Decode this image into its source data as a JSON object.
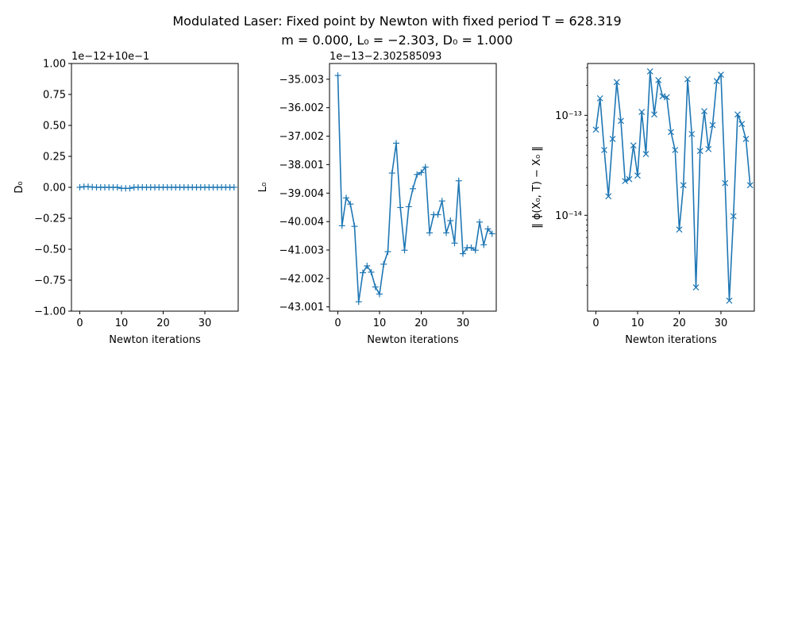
{
  "figure": {
    "title_line1": "Modulated Laser: Fixed point by Newton with fixed period T = 628.319",
    "title_line2": "m = 0.000, L₀ = −2.303, D₀ = 1.000"
  },
  "chart_data": [
    {
      "type": "line",
      "xlabel": "Newton iterations",
      "ylabel": "D₀",
      "offset_text": "1e−12+10e−1",
      "marker": "+",
      "color": "#1f77b4",
      "xlim": [
        -2,
        38
      ],
      "ylim": [
        -1.0,
        1.0
      ],
      "y_scale": "linear",
      "x_ticks": [
        0,
        10,
        20,
        30
      ],
      "x_tick_labels": [
        "0",
        "10",
        "20",
        "30"
      ],
      "y_ticks": [
        1.0,
        0.75,
        0.5,
        0.25,
        0.0,
        -0.25,
        -0.5,
        -0.75,
        -1.0
      ],
      "y_tick_labels": [
        "1.00",
        "0.75",
        "0.50",
        "0.25",
        "0.00",
        "−0.25",
        "−0.50",
        "−0.75",
        "−1.00"
      ],
      "x": [
        0,
        1,
        2,
        3,
        4,
        5,
        6,
        7,
        8,
        9,
        10,
        11,
        12,
        13,
        14,
        15,
        16,
        17,
        18,
        19,
        20,
        21,
        22,
        23,
        24,
        25,
        26,
        27,
        28,
        29,
        30,
        31,
        32,
        33,
        34,
        35,
        36,
        37
      ],
      "y": [
        0.0,
        0.005,
        0.005,
        0.002,
        0.0,
        0.0,
        0.0,
        0.0,
        0.0,
        0.0,
        -0.008,
        -0.008,
        -0.008,
        0.0,
        0.0,
        0.0,
        0.0,
        0.0,
        0.0,
        0.0,
        0.0,
        0.0,
        0.0,
        0.0,
        0.0,
        0.0,
        0.0,
        0.0,
        0.0,
        0.0,
        0.0,
        0.0,
        0.0,
        0.0,
        0.0,
        0.0,
        0.0,
        0.0
      ]
    },
    {
      "type": "line",
      "xlabel": "Newton iterations",
      "ylabel": "L₀",
      "offset_text": "1e−13−2.302585093",
      "marker": "+",
      "color": "#1f77b4",
      "xlim": [
        -2,
        38
      ],
      "ylim": [
        -43.15,
        -34.45
      ],
      "y_scale": "linear",
      "x_ticks": [
        0,
        10,
        20,
        30
      ],
      "x_tick_labels": [
        "0",
        "10",
        "20",
        "30"
      ],
      "y_ticks": [
        -35.003,
        -36.002,
        -37.002,
        -38.001,
        -39.004,
        -40.004,
        -41.003,
        -42.002,
        -43.001
      ],
      "y_tick_labels": [
        "−35.003",
        "−36.002",
        "−37.002",
        "−38.001",
        "−39.004",
        "−40.004",
        "−41.003",
        "−42.002",
        "−43.001"
      ],
      "x": [
        0,
        1,
        2,
        3,
        4,
        5,
        6,
        7,
        8,
        9,
        10,
        11,
        12,
        13,
        14,
        15,
        16,
        17,
        18,
        19,
        20,
        21,
        22,
        23,
        24,
        25,
        26,
        27,
        28,
        29,
        30,
        31,
        32,
        33,
        34,
        35,
        36,
        37
      ],
      "y": [
        -34.87,
        -40.15,
        -39.17,
        -39.39,
        -40.17,
        -42.82,
        -41.8,
        -41.56,
        -41.78,
        -42.3,
        -42.55,
        -41.5,
        -41.06,
        -38.3,
        -37.25,
        -39.51,
        -41.01,
        -39.48,
        -38.85,
        -38.35,
        -38.28,
        -38.09,
        -40.4,
        -39.76,
        -39.76,
        -39.28,
        -40.4,
        -39.97,
        -40.76,
        -38.57,
        -41.13,
        -40.92,
        -40.92,
        -41.01,
        -40.02,
        -40.82,
        -40.26,
        -40.43
      ]
    },
    {
      "type": "line",
      "xlabel": "Newton iterations",
      "ylabel": "‖ ϕ(X₀, T) − X₀ ‖",
      "marker": "x",
      "color": "#1f77b4",
      "xlim": [
        -2,
        38
      ],
      "y_scale": "log",
      "ylim": [
        1.1e-15,
        3.3e-13
      ],
      "x_ticks": [
        0,
        10,
        20,
        30
      ],
      "x_tick_labels": [
        "0",
        "10",
        "20",
        "30"
      ],
      "y_ticks": [
        1e-13,
        1e-14
      ],
      "y_tick_labels": [
        "10⁻¹³",
        "10⁻¹⁴"
      ],
      "x": [
        0,
        1,
        2,
        3,
        4,
        5,
        6,
        7,
        8,
        9,
        10,
        11,
        12,
        13,
        14,
        15,
        16,
        17,
        18,
        19,
        20,
        21,
        22,
        23,
        24,
        25,
        26,
        27,
        28,
        29,
        30,
        31,
        32,
        33,
        34,
        35,
        36,
        37
      ],
      "y": [
        7.2e-14,
        1.48e-13,
        4.5e-14,
        1.55e-14,
        5.8e-14,
        2.15e-13,
        8.8e-14,
        2.2e-14,
        2.3e-14,
        5e-14,
        2.5e-14,
        1.08e-13,
        4.1e-14,
        2.75e-13,
        1.02e-13,
        2.25e-13,
        1.55e-13,
        1.52e-13,
        6.8e-14,
        4.5e-14,
        7.2e-15,
        2e-14,
        2.3e-13,
        6.5e-14,
        1.9e-15,
        4.4e-14,
        1.1e-13,
        4.6e-14,
        8e-14,
        2.2e-13,
        2.55e-13,
        2.1e-14,
        1.4e-15,
        9.8e-15,
        1.02e-13,
        8.2e-14,
        5.8e-14,
        2e-14
      ]
    }
  ]
}
